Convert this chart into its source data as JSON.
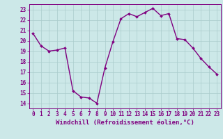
{
  "x": [
    0,
    1,
    2,
    3,
    4,
    5,
    6,
    7,
    8,
    9,
    10,
    11,
    12,
    13,
    14,
    15,
    16,
    17,
    18,
    19,
    20,
    21,
    22,
    23
  ],
  "y": [
    20.7,
    19.5,
    19.0,
    19.1,
    19.3,
    15.2,
    14.6,
    14.5,
    14.0,
    17.4,
    19.9,
    22.1,
    22.6,
    22.3,
    22.7,
    23.1,
    22.4,
    22.6,
    20.2,
    20.1,
    19.3,
    18.3,
    17.5,
    16.8
  ],
  "line_color": "#800080",
  "marker": "D",
  "marker_size": 2.0,
  "line_width": 1.0,
  "bg_color": "#cce8e8",
  "grid_color": "#aacccc",
  "xlabel": "Windchill (Refroidissement éolien,°C)",
  "xlim": [
    -0.5,
    23.5
  ],
  "ylim": [
    13.5,
    23.5
  ],
  "yticks": [
    14,
    15,
    16,
    17,
    18,
    19,
    20,
    21,
    22,
    23
  ],
  "xticks": [
    0,
    1,
    2,
    3,
    4,
    5,
    6,
    7,
    8,
    9,
    10,
    11,
    12,
    13,
    14,
    15,
    16,
    17,
    18,
    19,
    20,
    21,
    22,
    23
  ],
  "tick_color": "#800080",
  "tick_fontsize": 5.5,
  "xlabel_fontsize": 6.5,
  "xlabel_color": "#800080",
  "spine_color": "#800080"
}
